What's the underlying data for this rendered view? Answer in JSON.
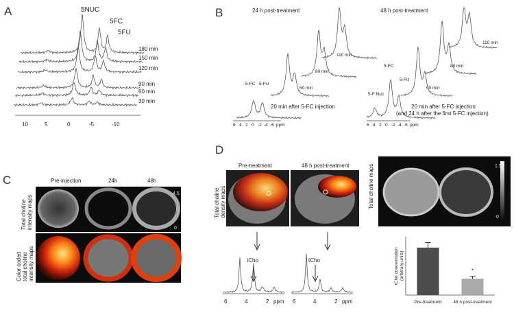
{
  "panel_a": {
    "label": "A",
    "peaks": [
      "5NUC",
      "5FC",
      "5FU"
    ],
    "traces": [
      "180 min",
      "150 min",
      "120 min",
      "90 min",
      "60 min",
      "30 min"
    ],
    "axis_ticks": [
      "10",
      "5",
      "0",
      "-5",
      "-10"
    ]
  },
  "panel_b": {
    "label": "B",
    "left": {
      "title": "24 h post-treatment",
      "peaks": [
        "5-FC",
        "5-FU"
      ],
      "traces": [
        "110 min",
        "80 min",
        "50 min"
      ],
      "caption": [
        "20 min after 5-FC injection"
      ],
      "axis_ticks": [
        "6",
        "4",
        "2",
        "0",
        "-2",
        "-4",
        "-6"
      ],
      "axis_unit": "ppm"
    },
    "right": {
      "title": "48 h post-treatment",
      "peaks": [
        "5-FC",
        "5-FU",
        "5-F Nuc"
      ],
      "traces": [
        "110 min",
        "80 min",
        "50 min"
      ],
      "caption": [
        "20 min after 5-FC injection",
        "(and 24 h after the first 5-FC injection)"
      ],
      "axis_ticks": [
        "6",
        "4",
        "2",
        "0",
        "-2",
        "-4",
        "-6"
      ],
      "axis_unit": "ppm"
    }
  },
  "panel_c": {
    "label": "C",
    "columns": [
      "Pre-injection",
      "24h",
      "48h"
    ],
    "rows": [
      [
        "Total choline",
        "intensity maps"
      ],
      [
        "Color coded",
        "total choline",
        "intensity maps"
      ]
    ],
    "colorbar": [
      "4.5",
      "0"
    ]
  },
  "panel_d": {
    "label": "D",
    "columns": [
      "Pre-treatment",
      "48 h post-treatment"
    ],
    "row_label": [
      "Total choline",
      "density maps"
    ],
    "peak_label": "tCho",
    "axis_ticks": [
      "6",
      "4",
      "2"
    ],
    "axis_unit": "ppm",
    "map_label": "Total choline maps",
    "colorbar": [
      "1.5",
      "0"
    ],
    "chart": {
      "type": "bar",
      "y_label": [
        "tCho concentration",
        "(arbitrary units)"
      ],
      "categories": [
        "Pre-treatment",
        "48 h post-treatment"
      ],
      "values": [
        1.22,
        0.42
      ],
      "errors": [
        0.13,
        0.06
      ],
      "colors": [
        "#4d4d4d",
        "#a9a9a9"
      ],
      "ylim": [
        0,
        1.5
      ],
      "significance": "*"
    }
  }
}
